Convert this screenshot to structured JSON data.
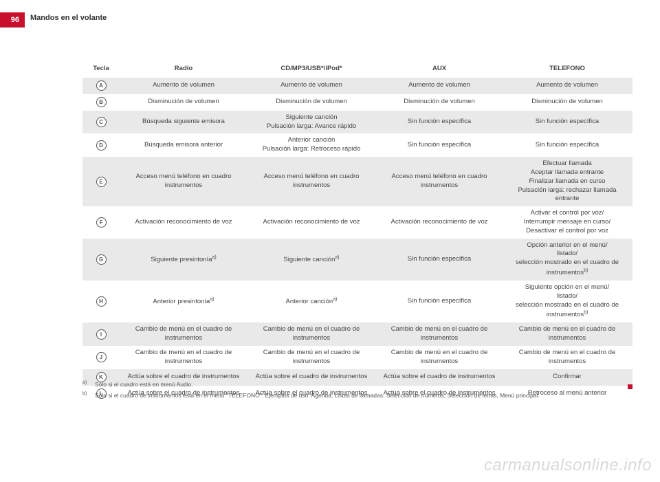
{
  "page": {
    "number": "96",
    "section": "Mandos en el volante"
  },
  "table": {
    "headers": {
      "key": "Tecla",
      "radio": "Radio",
      "cd": "CD/MP3/USB*/iPod*",
      "aux": "AUX",
      "tel": "TELEFONO"
    },
    "rows": [
      {
        "key": "A",
        "radio": "Aumento de volumen",
        "cd": "Aumento de volumen",
        "aux": "Aumento de volumen",
        "tel": "Aumento de volumen"
      },
      {
        "key": "B",
        "radio": "Disminución de volumen",
        "cd": "Disminución de volumen",
        "aux": "Disminución de volumen",
        "tel": "Disminución de volumen"
      },
      {
        "key": "C",
        "radio": "Búsqueda siguiente emisora",
        "cd": "Siguiente canción\nPulsación larga: Avance rápido",
        "aux": "Sin función específica",
        "tel": "Sin función específica"
      },
      {
        "key": "D",
        "radio": "Búsqueda emisora anterior",
        "cd": "Anterior canción\nPulsación larga: Retroceso rápido",
        "aux": "Sin función específica",
        "tel": "Sin función específica"
      },
      {
        "key": "E",
        "radio": "Acceso menú teléfono en cuadro instrumentos",
        "cd": "Acceso menú teléfono en cuadro instrumentos",
        "aux": "Acceso menú teléfono en cuadro instrumentos",
        "tel": "Efectuar llamada\nAceptar llamada entrante\nFinalizar llamada en curso\nPulsación larga: rechazar llamada entrante"
      },
      {
        "key": "F",
        "radio": "Activación reconocimiento de voz",
        "cd": "Activación reconocimiento de voz",
        "aux": "Activación reconocimiento de voz",
        "tel": "Activar el control por voz/\nInterrumpir mensaje en curso/\nDesactivar el control por voz"
      },
      {
        "key": "G",
        "radio": "Siguiente presintonía",
        "radio_sup": "a)",
        "cd": "Siguiente canción",
        "cd_sup": "a)",
        "aux": "Sin función específica",
        "tel": "Opción anterior en el menú/\nlistado/\nselección mostrado en el cuadro de instrumentos",
        "tel_sup": "b)"
      },
      {
        "key": "H",
        "radio": "Anterior presintonía",
        "radio_sup": "a)",
        "cd": "Anterior canción",
        "cd_sup": "a)",
        "aux": "Sin función específica",
        "tel": "Siguiente opción en el menú/\nlistado/\nselección mostrado en el cuadro de instrumentos",
        "tel_sup": "b)"
      },
      {
        "key": "I",
        "radio": "Cambio de menú en el cuadro de instrumentos",
        "cd": "Cambio de menú en el cuadro de instrumentos",
        "aux": "Cambio de menú en el cuadro de instrumentos",
        "tel": "Cambio de menú en el cuadro de instrumentos"
      },
      {
        "key": "J",
        "radio": "Cambio de menú en el cuadro de instrumentos",
        "cd": "Cambio de menú en el cuadro de instrumentos",
        "aux": "Cambio de menú en el cuadro de instrumentos",
        "tel": "Cambio de menú en el cuadro de instrumentos"
      },
      {
        "key": "K",
        "radio": "Actúa sobre el cuadro de instrumentos",
        "cd": "Actúa sobre el cuadro de instrumentos",
        "aux": "Actúa sobre el cuadro de instrumentos",
        "tel": "Confirmar"
      },
      {
        "key": "L",
        "radio": "Actúa sobre el cuadro de instrumentos",
        "cd": "Actúa sobre el cuadro de instrumentos",
        "aux": "Actúa sobre el cuadro de instrumentos",
        "tel": "Retroceso al menú anterior"
      }
    ]
  },
  "footnotes": {
    "a": "Sólo si el cuadro está en menú Audio.",
    "b": "Sólo si el cuadro de instrumentos está en el menú \"TELEFONO\". Ejemplos de uso: Agenda, Listas de llamadas, Selección de números, Selección de letras, Menú principal."
  },
  "watermark": "carmanualsonline.info",
  "style": {
    "accent_color": "#c8102e",
    "row_alt_bg": "#e9e9e9",
    "text_color": "#444444",
    "font_size_body": 9.5,
    "font_size_header": 11
  }
}
